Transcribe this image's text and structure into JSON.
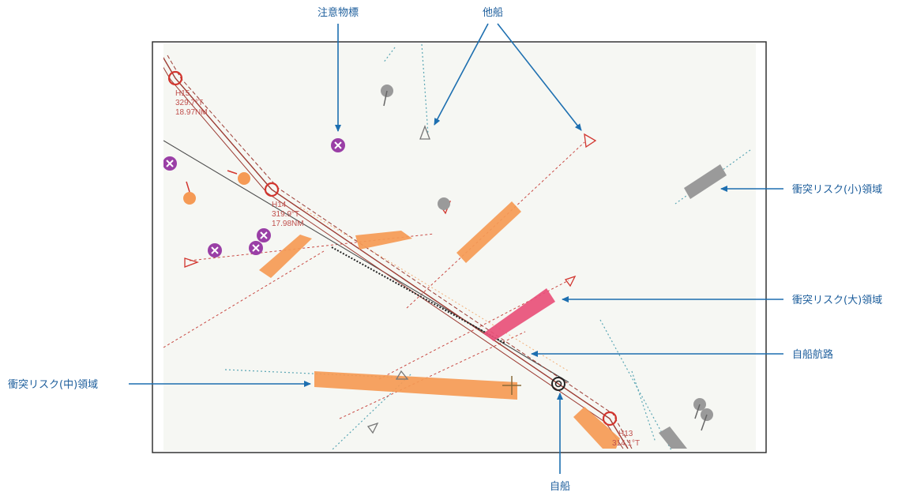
{
  "colors": {
    "callout": "#1d6fb0",
    "map_bg": "#f6f7f3",
    "own_route": "#9c3b33",
    "route_marker": "#d2362f",
    "risk_small": "#9a9a9a",
    "risk_medium": "#f59a55",
    "risk_large": "#e8507a",
    "caution_mark": "#9a3fa6",
    "target_vector": "#d2362f",
    "cyan_track": "#4fa3b0"
  },
  "callouts": {
    "caution_marker": "注意物標",
    "other_ship": "他船",
    "risk_small": "衝突リスク(小)領域",
    "risk_large": "衝突リスク(大)領域",
    "own_route": "自船航路",
    "risk_medium": "衝突リスク(中)領域",
    "own_ship": "自船"
  },
  "waypoints": [
    {
      "id": "H15",
      "bearing": "329.7°T",
      "distance": "18.97NM"
    },
    {
      "id": "H14",
      "bearing": "319.9°T",
      "distance": "17.98NM"
    },
    {
      "id": "H13",
      "bearing": "314.1°T",
      "distance": ""
    }
  ],
  "icons": {
    "caution_marker": "purple-x-circle-icon",
    "other_ship": "triangle-ship-icon",
    "own_ship": "own-ship-circle-icon",
    "buoy": "gray-buoy-icon"
  }
}
